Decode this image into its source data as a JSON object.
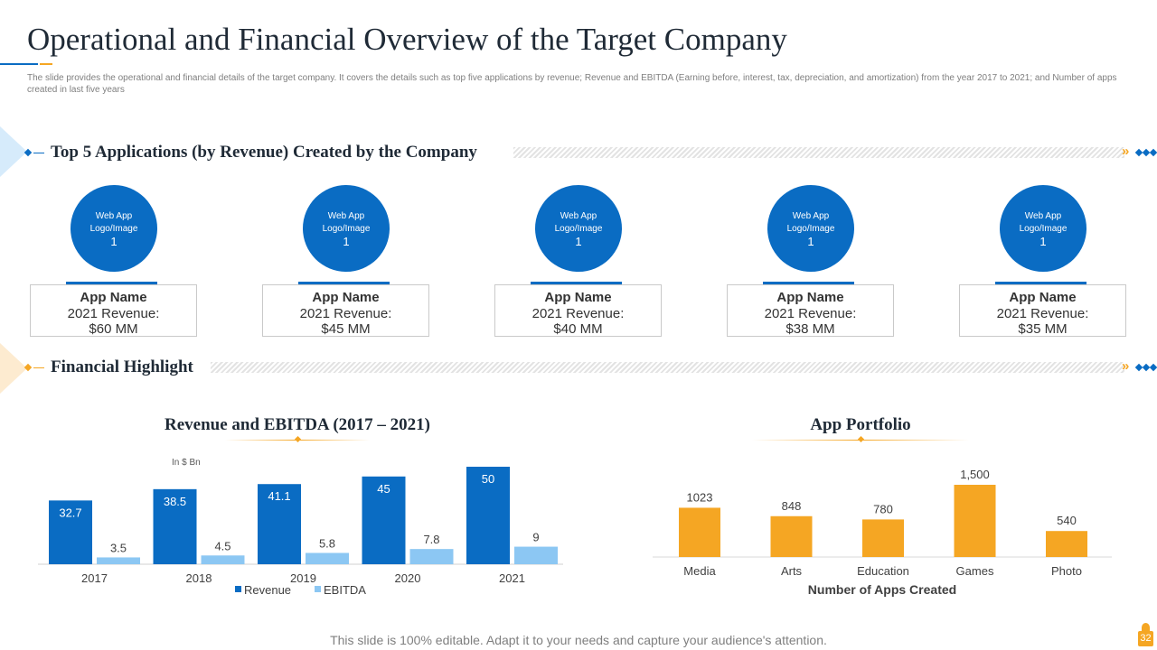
{
  "title": "Operational and Financial Overview of the Target Company",
  "subtitle": "The slide provides the operational and financial details of the target company. It covers the details such as top five applications by revenue; Revenue and EBITDA  (Earning before, interest, tax, depreciation, and amortization) from the year 2017 to 2021; and Number of apps created in last five years",
  "colors": {
    "primary": "#0a6cc3",
    "light": "#8cc7f3",
    "accent": "#f5a623",
    "title": "#1f2a36"
  },
  "section1": {
    "title": "Top 5 Applications (by Revenue) Created by the Company"
  },
  "section2": {
    "title": "Financial Highlight"
  },
  "apps": [
    {
      "logo_line1": "Web App",
      "logo_line2": "Logo/Image",
      "logo_num": "1",
      "name": "App Name",
      "rev_label": "2021 Revenue:",
      "rev_value": "$60 MM"
    },
    {
      "logo_line1": "Web App",
      "logo_line2": "Logo/Image",
      "logo_num": "1",
      "name": "App Name",
      "rev_label": "2021 Revenue:",
      "rev_value": "$45 MM"
    },
    {
      "logo_line1": "Web App",
      "logo_line2": "Logo/Image",
      "logo_num": "1",
      "name": "App Name",
      "rev_label": "2021 Revenue:",
      "rev_value": "$40 MM"
    },
    {
      "logo_line1": "Web App",
      "logo_line2": "Logo/Image",
      "logo_num": "1",
      "name": "App Name",
      "rev_label": "2021 Revenue:",
      "rev_value": "$38 MM"
    },
    {
      "logo_line1": "Web App",
      "logo_line2": "Logo/Image",
      "logo_num": "1",
      "name": "App Name",
      "rev_label": "2021 Revenue:",
      "rev_value": "$35 MM"
    }
  ],
  "chart_data": [
    {
      "type": "bar",
      "title": "Revenue and EBITDA (2017 – 2021)",
      "unit_note": "In $ Bn",
      "categories": [
        "2017",
        "2018",
        "2019",
        "2020",
        "2021"
      ],
      "series": [
        {
          "name": "Revenue",
          "values": [
            32.7,
            38.5,
            41.1,
            45,
            50
          ],
          "labels": [
            "32.7",
            "38.5",
            "41.1",
            "45",
            "50"
          ],
          "color": "#0a6cc3"
        },
        {
          "name": "EBITDA",
          "values": [
            3.5,
            4.5,
            5.8,
            7.8,
            9
          ],
          "labels": [
            "3.5",
            "4.5",
            "5.8",
            "7.8",
            "9"
          ],
          "color": "#8cc7f3"
        }
      ],
      "ylim": [
        0,
        50
      ],
      "legend": "bottom"
    },
    {
      "type": "bar",
      "title": "App Portfolio",
      "xlabel": "Number of Apps Created",
      "categories": [
        "Media",
        "Arts",
        "Education",
        "Games",
        "Photo"
      ],
      "values": [
        1023,
        848,
        780,
        1500,
        540
      ],
      "labels": [
        "1023",
        "848",
        "780",
        "1,500",
        "540"
      ],
      "color": "#f5a623",
      "ylim": [
        0,
        1500
      ]
    }
  ],
  "footer": "This slide is 100% editable. Adapt it to your needs and capture your audience's attention.",
  "page_number": "32"
}
